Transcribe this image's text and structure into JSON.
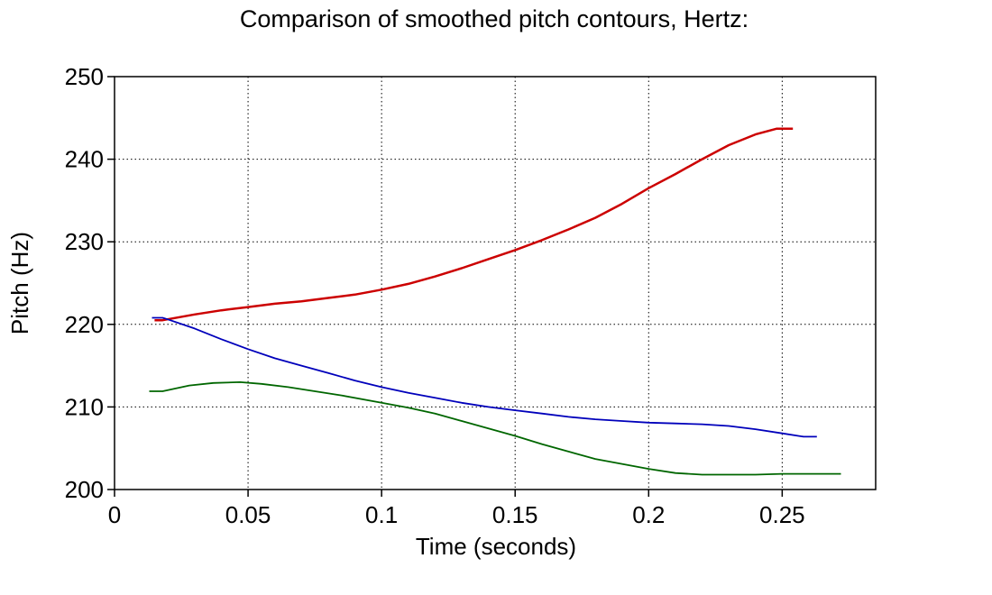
{
  "chart_data": {
    "type": "line",
    "title": "Comparison of smoothed pitch contours, Hertz:",
    "xlabel": "Time (seconds)",
    "ylabel": "Pitch (Hz)",
    "xlim": [
      0,
      0.285
    ],
    "ylim": [
      200,
      250
    ],
    "xticks": [
      0,
      0.05,
      0.1,
      0.15,
      0.2,
      0.25
    ],
    "xtick_labels": [
      "0",
      "0.05",
      "0.1",
      "0.15",
      "0.2",
      "0.25"
    ],
    "yticks": [
      200,
      210,
      220,
      230,
      240,
      250
    ],
    "ytick_labels": [
      "200",
      "210",
      "220",
      "230",
      "240",
      "250"
    ],
    "grid": true,
    "series": [
      {
        "color": "#cc0000",
        "x": [
          0.015,
          0.018,
          0.03,
          0.04,
          0.05,
          0.06,
          0.07,
          0.08,
          0.09,
          0.1,
          0.11,
          0.12,
          0.13,
          0.14,
          0.15,
          0.16,
          0.17,
          0.18,
          0.19,
          0.2,
          0.21,
          0.22,
          0.23,
          0.24,
          0.248,
          0.25,
          0.254
        ],
        "y": [
          220.5,
          220.5,
          221.2,
          221.7,
          222.1,
          222.5,
          222.8,
          223.2,
          223.6,
          224.2,
          224.9,
          225.8,
          226.8,
          227.9,
          229.0,
          230.2,
          231.5,
          232.9,
          234.6,
          236.5,
          238.2,
          240.0,
          241.7,
          243.0,
          243.7,
          243.7,
          243.7
        ]
      },
      {
        "color": "#0000bb",
        "x": [
          0.014,
          0.018,
          0.02,
          0.03,
          0.04,
          0.05,
          0.06,
          0.07,
          0.08,
          0.09,
          0.1,
          0.11,
          0.12,
          0.13,
          0.14,
          0.15,
          0.16,
          0.17,
          0.18,
          0.19,
          0.2,
          0.21,
          0.22,
          0.23,
          0.24,
          0.25,
          0.258,
          0.263
        ],
        "y": [
          220.8,
          220.8,
          220.6,
          219.5,
          218.2,
          217.0,
          215.9,
          215.0,
          214.1,
          213.2,
          212.4,
          211.7,
          211.1,
          210.5,
          210.0,
          209.6,
          209.2,
          208.8,
          208.5,
          208.3,
          208.1,
          208.0,
          207.9,
          207.7,
          207.3,
          206.8,
          206.4,
          206.4
        ]
      },
      {
        "color": "#006600",
        "x": [
          0.013,
          0.018,
          0.028,
          0.037,
          0.047,
          0.055,
          0.065,
          0.075,
          0.085,
          0.1,
          0.11,
          0.12,
          0.13,
          0.14,
          0.15,
          0.16,
          0.17,
          0.18,
          0.19,
          0.2,
          0.21,
          0.22,
          0.23,
          0.24,
          0.25,
          0.26,
          0.272
        ],
        "y": [
          211.9,
          211.9,
          212.6,
          212.9,
          213.0,
          212.8,
          212.4,
          211.9,
          211.4,
          210.5,
          209.9,
          209.2,
          208.3,
          207.4,
          206.5,
          205.5,
          204.6,
          203.7,
          203.1,
          202.5,
          202.0,
          201.8,
          201.8,
          201.8,
          201.9,
          201.9,
          201.9
        ]
      }
    ]
  }
}
